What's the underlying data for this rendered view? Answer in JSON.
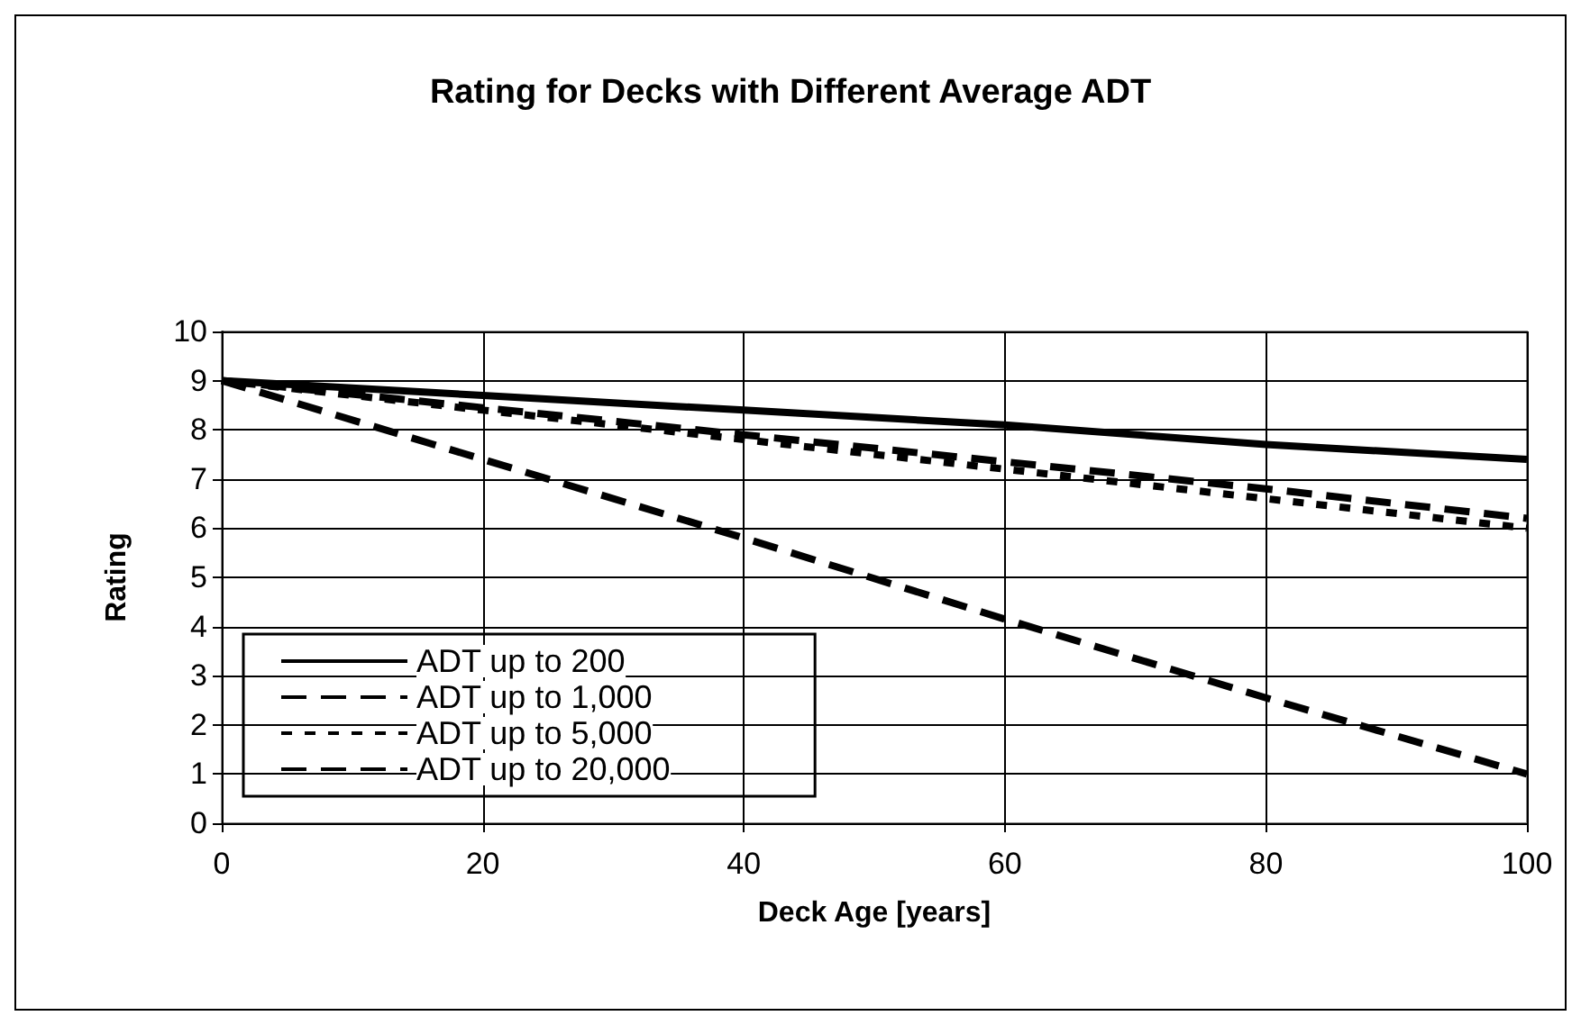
{
  "chart_data": {
    "type": "line",
    "title": "Rating for Decks with Different Average ADT",
    "xlabel": "Deck Age [years]",
    "ylabel": "Rating",
    "x": [
      0,
      20,
      40,
      60,
      80,
      100
    ],
    "series": [
      {
        "name": "ADT up to 200",
        "color": "#000000",
        "line_style": "solid",
        "values": [
          9,
          8.7,
          8.4,
          8.1,
          7.7,
          7.4
        ]
      },
      {
        "name": "ADT up to 1,000",
        "color": "#000000",
        "line_style": "dashed",
        "values": [
          9,
          8.45,
          7.9,
          7.35,
          6.8,
          6.2
        ]
      },
      {
        "name": "ADT up to 5,000",
        "color": "#000000",
        "line_style": "dotted",
        "values": [
          9,
          8.4,
          7.8,
          7.2,
          6.6,
          6.0
        ]
      },
      {
        "name": "ADT up to 20,000",
        "color": "#000000",
        "line_style": "dashed",
        "values": [
          9,
          7.4,
          5.8,
          4.15,
          2.55,
          1.0
        ]
      }
    ],
    "xlim": [
      0,
      100
    ],
    "xticks": [
      0,
      20,
      40,
      60,
      80,
      100
    ],
    "ylim": [
      0,
      10
    ],
    "yticks": [
      0,
      1,
      2,
      3,
      4,
      5,
      6,
      7,
      8,
      9,
      10
    ],
    "grid": true,
    "legend": "bottom left",
    "marker": "none"
  }
}
